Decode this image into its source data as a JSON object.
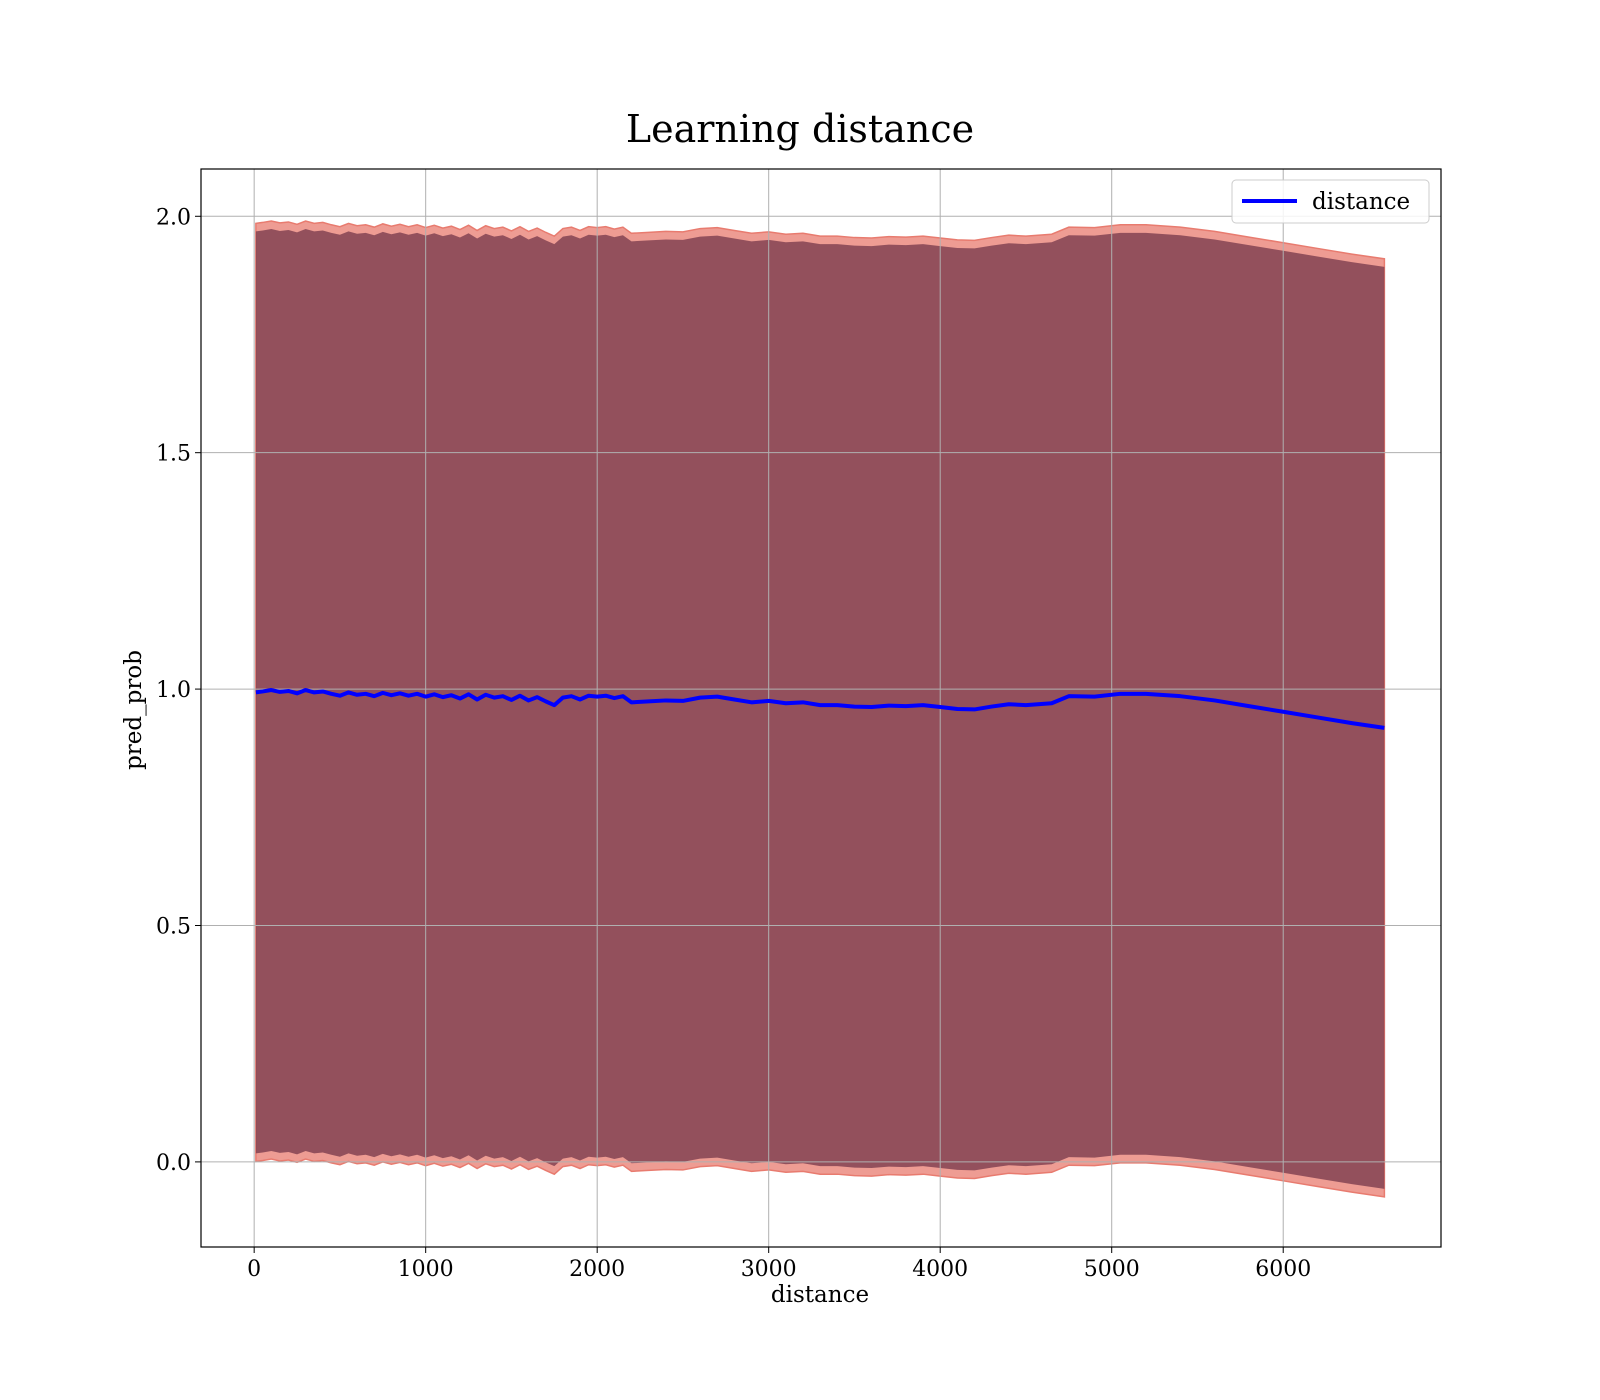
{
  "chart_data": {
    "type": "line",
    "title": "Learning distance",
    "xlabel": "distance",
    "ylabel": "pred_prob",
    "xlim": [
      -310,
      6920
    ],
    "ylim": [
      -0.18,
      2.1
    ],
    "xticks": [
      0,
      1000,
      2000,
      3000,
      4000,
      5000,
      6000
    ],
    "yticks": [
      0.0,
      0.5,
      1.0,
      1.5,
      2.0
    ],
    "xtick_labels": [
      "0",
      "1000",
      "2000",
      "3000",
      "4000",
      "5000",
      "6000"
    ],
    "ytick_labels": [
      "0.0",
      "0.5",
      "1.0",
      "1.5",
      "2.0"
    ],
    "grid": true,
    "legend_position": "top-right",
    "colors": {
      "line": "#0000ff",
      "band_inner": "#7a3b4d",
      "band_outer": "#e87b6f",
      "grid": "#b0b0b0"
    },
    "series": [
      {
        "name": "distance",
        "x": [
          10,
          50,
          100,
          150,
          200,
          250,
          300,
          350,
          400,
          450,
          500,
          550,
          600,
          650,
          700,
          750,
          800,
          850,
          900,
          950,
          1000,
          1050,
          1100,
          1150,
          1200,
          1250,
          1300,
          1350,
          1400,
          1450,
          1500,
          1550,
          1600,
          1650,
          1700,
          1750,
          1800,
          1850,
          1900,
          1950,
          2000,
          2050,
          2100,
          2150,
          2200,
          2300,
          2400,
          2500,
          2600,
          2700,
          2800,
          2900,
          3000,
          3100,
          3200,
          3300,
          3400,
          3500,
          3600,
          3700,
          3800,
          3900,
          4000,
          4100,
          4200,
          4300,
          4400,
          4500,
          4650,
          4750,
          4900,
          5050,
          5200,
          5400,
          5600,
          5800,
          6000,
          6200,
          6400,
          6590
        ],
        "values": [
          0.993,
          0.995,
          0.998,
          0.994,
          0.996,
          0.991,
          0.998,
          0.993,
          0.995,
          0.99,
          0.986,
          0.993,
          0.988,
          0.99,
          0.985,
          0.992,
          0.987,
          0.991,
          0.986,
          0.99,
          0.984,
          0.989,
          0.983,
          0.987,
          0.98,
          0.989,
          0.978,
          0.988,
          0.982,
          0.985,
          0.977,
          0.986,
          0.976,
          0.983,
          0.974,
          0.966,
          0.982,
          0.985,
          0.978,
          0.986,
          0.984,
          0.986,
          0.981,
          0.985,
          0.972,
          0.974,
          0.976,
          0.975,
          0.982,
          0.984,
          0.978,
          0.972,
          0.975,
          0.97,
          0.972,
          0.966,
          0.966,
          0.963,
          0.962,
          0.965,
          0.964,
          0.966,
          0.962,
          0.958,
          0.957,
          0.963,
          0.968,
          0.966,
          0.97,
          0.985,
          0.984,
          0.99,
          0.99,
          0.985,
          0.976,
          0.964,
          0.952,
          0.94,
          0.928,
          0.918
        ]
      }
    ],
    "band_halfwidth_outer": 0.992,
    "band_halfwidth_inner": 0.975
  }
}
